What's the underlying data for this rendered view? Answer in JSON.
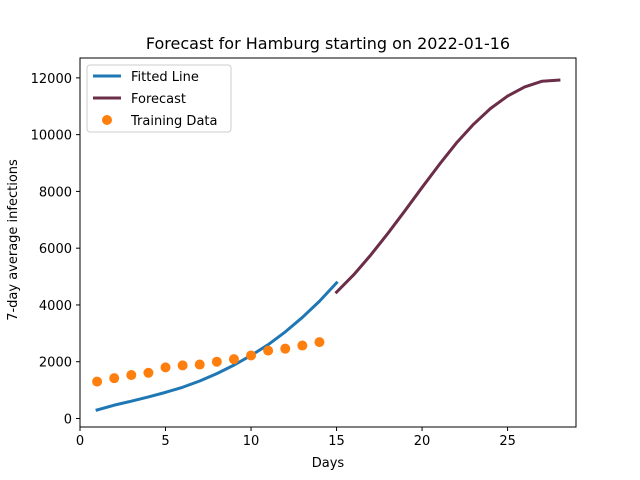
{
  "chart_data": {
    "type": "line",
    "title": "Forecast for Hamburg starting on 2022-01-16",
    "xlabel": "Days",
    "ylabel": "7-day average infections",
    "xlim": [
      0,
      29
    ],
    "ylim": [
      -300,
      12700
    ],
    "xticks": [
      0,
      5,
      10,
      15,
      20,
      25
    ],
    "yticks": [
      0,
      2000,
      4000,
      6000,
      8000,
      10000,
      12000
    ],
    "grid": false,
    "legend_position": "top-left",
    "series": [
      {
        "name": "Fitted Line",
        "kind": "line",
        "color": "#1f77b4",
        "x": [
          1,
          2,
          3,
          4,
          5,
          6,
          7,
          8,
          9,
          10,
          11,
          12,
          13,
          14,
          15
        ],
        "y": [
          300,
          470,
          610,
          760,
          920,
          1100,
          1320,
          1580,
          1880,
          2220,
          2600,
          3050,
          3560,
          4130,
          4780
        ]
      },
      {
        "name": "Forecast",
        "kind": "line",
        "color": "#6b2d47",
        "x": [
          15,
          16,
          17,
          18,
          19,
          20,
          21,
          22,
          23,
          24,
          25,
          26,
          27,
          28
        ],
        "y": [
          4450,
          5060,
          5760,
          6520,
          7320,
          8140,
          8940,
          9700,
          10360,
          10920,
          11360,
          11680,
          11880,
          11920
        ]
      },
      {
        "name": "Training Data",
        "kind": "scatter",
        "color": "#ff7f0e",
        "x": [
          1,
          2,
          3,
          4,
          5,
          6,
          7,
          8,
          9,
          10,
          11,
          12,
          13,
          14
        ],
        "y": [
          1300,
          1420,
          1530,
          1610,
          1800,
          1870,
          1900,
          2000,
          2090,
          2220,
          2390,
          2460,
          2570,
          2690
        ]
      }
    ]
  }
}
